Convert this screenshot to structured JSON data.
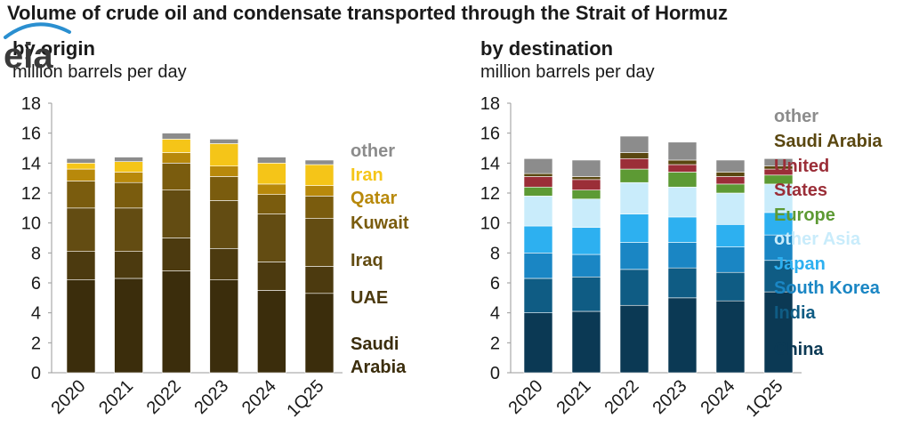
{
  "title": "Volume of crude oil and condensate transported through the Strait of Hormuz",
  "logo_text": "eia",
  "chart_data": [
    {
      "type": "bar",
      "stacked": true,
      "subtitle": "by origin",
      "ylabel": "million barrels per day",
      "ylim": [
        0,
        18
      ],
      "yticks": [
        "0",
        "2",
        "4",
        "6",
        "8",
        "10",
        "12",
        "14",
        "16",
        "18"
      ],
      "categories": [
        "2020",
        "2021",
        "2022",
        "2023",
        "2024",
        "1Q25"
      ],
      "grid": false,
      "legend": "right, labels placed next to stacked segments",
      "series": [
        {
          "name": "Saudi Arabia",
          "legend": [
            "Saudi",
            "Arabia"
          ],
          "color": "#3b2d0c",
          "values": [
            6.2,
            6.3,
            6.8,
            6.2,
            5.5,
            5.3
          ]
        },
        {
          "name": "UAE",
          "legend": [
            "UAE"
          ],
          "color": "#4c3a0f",
          "values": [
            1.9,
            1.8,
            2.2,
            2.1,
            1.9,
            1.8
          ]
        },
        {
          "name": "Iraq",
          "legend": [
            "Iraq"
          ],
          "color": "#634c12",
          "values": [
            2.9,
            2.9,
            3.2,
            3.2,
            3.2,
            3.2
          ]
        },
        {
          "name": "Kuwait",
          "legend": [
            "Kuwait"
          ],
          "color": "#7a5c0e",
          "values": [
            1.8,
            1.7,
            1.8,
            1.6,
            1.3,
            1.5
          ]
        },
        {
          "name": "Qatar",
          "legend": [
            "Qatar"
          ],
          "color": "#b8890b",
          "values": [
            0.8,
            0.7,
            0.7,
            0.7,
            0.7,
            0.7
          ]
        },
        {
          "name": "Iran",
          "legend": [
            "Iran"
          ],
          "color": "#f5c518",
          "values": [
            0.4,
            0.7,
            0.9,
            1.5,
            1.4,
            1.4
          ]
        },
        {
          "name": "other",
          "legend": [
            "other"
          ],
          "color": "#8c8c8c",
          "values": [
            0.3,
            0.3,
            0.4,
            0.3,
            0.4,
            0.3
          ]
        }
      ]
    },
    {
      "type": "bar",
      "stacked": true,
      "subtitle": "by destination",
      "ylabel": "million barrels per day",
      "ylim": [
        0,
        18
      ],
      "yticks": [
        "0",
        "2",
        "4",
        "6",
        "8",
        "10",
        "12",
        "14",
        "16",
        "18"
      ],
      "categories": [
        "2020",
        "2021",
        "2022",
        "2023",
        "2024",
        "1Q25"
      ],
      "grid": false,
      "legend": "right, labels placed next to stacked segments",
      "series": [
        {
          "name": "China",
          "legend": [
            "China"
          ],
          "color": "#0b3954",
          "values": [
            4.0,
            4.1,
            4.5,
            5.0,
            4.8,
            5.4
          ]
        },
        {
          "name": "India",
          "legend": [
            "India"
          ],
          "color": "#0f5c84",
          "values": [
            2.3,
            2.3,
            2.4,
            2.0,
            1.9,
            2.1
          ]
        },
        {
          "name": "South Korea",
          "legend": [
            "South Korea"
          ],
          "color": "#1a86c4",
          "values": [
            1.7,
            1.5,
            1.8,
            1.7,
            1.7,
            1.7
          ]
        },
        {
          "name": "Japan",
          "legend": [
            "Japan"
          ],
          "color": "#2db0f0",
          "values": [
            1.8,
            1.8,
            1.9,
            1.7,
            1.5,
            1.5
          ]
        },
        {
          "name": "other Asia",
          "legend": [
            "other Asia"
          ],
          "color": "#c9ecfb",
          "values": [
            2.0,
            1.9,
            2.1,
            2.0,
            2.1,
            1.9
          ]
        },
        {
          "name": "Europe",
          "legend": [
            "Europe"
          ],
          "color": "#5d9a34",
          "values": [
            0.6,
            0.6,
            0.9,
            1.0,
            0.6,
            0.6
          ]
        },
        {
          "name": "United States",
          "legend": [
            "United",
            "States"
          ],
          "color": "#9b2e38",
          "values": [
            0.7,
            0.7,
            0.7,
            0.5,
            0.5,
            0.4
          ]
        },
        {
          "name": "Saudi Arabia",
          "legend": [
            "Saudi Arabia"
          ],
          "color": "#5a4710",
          "values": [
            0.2,
            0.2,
            0.4,
            0.3,
            0.3,
            0.2
          ]
        },
        {
          "name": "other",
          "legend": [
            "other"
          ],
          "color": "#8c8c8c",
          "values": [
            1.0,
            1.1,
            1.1,
            1.2,
            0.8,
            0.5
          ]
        }
      ]
    }
  ]
}
